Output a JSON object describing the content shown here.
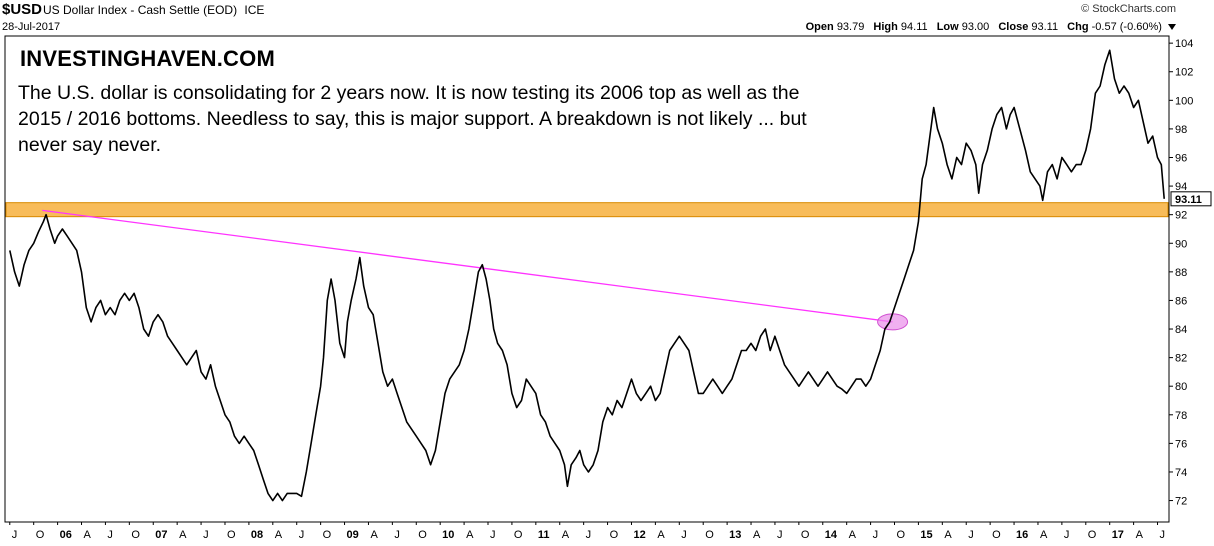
{
  "header": {
    "symbol": "$USD",
    "description": "US Dollar Index - Cash Settle (EOD)",
    "exchange": "ICE",
    "date": "28-Jul-2017",
    "copyright": "© StockCharts.com",
    "open_label": "Open",
    "open_value": "93.79",
    "high_label": "High",
    "high_value": "94.11",
    "low_label": "Low",
    "low_value": "93.00",
    "close_label": "Close",
    "close_value": "93.11",
    "chg_label": "Chg",
    "chg_value": "-0.57 (-0.60%)"
  },
  "annotation": {
    "title": "INVESTINGHAVEN.COM",
    "text": "The U.S. dollar is consolidating for 2 years now. It is now testing its 2006 top as well as the 2015 / 2016 bottoms. Needless to say, this is major support. A breakdown is not likely ... but never say never."
  },
  "colors": {
    "price": "#000000",
    "support_band": "#f5a623",
    "trendline": "#ff33ff",
    "highlight": "#e98ee9"
  },
  "chart_data": {
    "type": "line",
    "ylim": [
      70.5,
      104.5
    ],
    "y_ticks": [
      72,
      74,
      76,
      78,
      80,
      82,
      84,
      86,
      88,
      90,
      92,
      94,
      96,
      98,
      100,
      102,
      104
    ],
    "last_price_label": "93.11",
    "last_price": 93.11,
    "x_ticks": [
      {
        "label": "J",
        "t": 2005.5
      },
      {
        "label": "O",
        "t": 2005.75
      },
      {
        "label": "06",
        "t": 2006.0,
        "year": true
      },
      {
        "label": "A",
        "t": 2006.25
      },
      {
        "label": "J",
        "t": 2006.5
      },
      {
        "label": "O",
        "t": 2006.75
      },
      {
        "label": "07",
        "t": 2007.0,
        "year": true
      },
      {
        "label": "A",
        "t": 2007.25
      },
      {
        "label": "J",
        "t": 2007.5
      },
      {
        "label": "O",
        "t": 2007.75
      },
      {
        "label": "08",
        "t": 2008.0,
        "year": true
      },
      {
        "label": "A",
        "t": 2008.25
      },
      {
        "label": "J",
        "t": 2008.5
      },
      {
        "label": "O",
        "t": 2008.75
      },
      {
        "label": "09",
        "t": 2009.0,
        "year": true
      },
      {
        "label": "A",
        "t": 2009.25
      },
      {
        "label": "J",
        "t": 2009.5
      },
      {
        "label": "O",
        "t": 2009.75
      },
      {
        "label": "10",
        "t": 2010.0,
        "year": true
      },
      {
        "label": "A",
        "t": 2010.25
      },
      {
        "label": "J",
        "t": 2010.5
      },
      {
        "label": "O",
        "t": 2010.75
      },
      {
        "label": "11",
        "t": 2011.0,
        "year": true
      },
      {
        "label": "A",
        "t": 2011.25
      },
      {
        "label": "J",
        "t": 2011.5
      },
      {
        "label": "O",
        "t": 2011.75
      },
      {
        "label": "12",
        "t": 2012.0,
        "year": true
      },
      {
        "label": "A",
        "t": 2012.25
      },
      {
        "label": "J",
        "t": 2012.5
      },
      {
        "label": "O",
        "t": 2012.75
      },
      {
        "label": "13",
        "t": 2013.0,
        "year": true
      },
      {
        "label": "A",
        "t": 2013.25
      },
      {
        "label": "J",
        "t": 2013.5
      },
      {
        "label": "O",
        "t": 2013.75
      },
      {
        "label": "14",
        "t": 2014.0,
        "year": true
      },
      {
        "label": "A",
        "t": 2014.25
      },
      {
        "label": "J",
        "t": 2014.5
      },
      {
        "label": "O",
        "t": 2014.75
      },
      {
        "label": "15",
        "t": 2015.0,
        "year": true
      },
      {
        "label": "A",
        "t": 2015.25
      },
      {
        "label": "J",
        "t": 2015.5
      },
      {
        "label": "O",
        "t": 2015.75
      },
      {
        "label": "16",
        "t": 2016.0,
        "year": true
      },
      {
        "label": "A",
        "t": 2016.25
      },
      {
        "label": "J",
        "t": 2016.5
      },
      {
        "label": "O",
        "t": 2016.75
      },
      {
        "label": "17",
        "t": 2017.0,
        "year": true
      },
      {
        "label": "A",
        "t": 2017.25
      },
      {
        "label": "J",
        "t": 2017.5
      }
    ],
    "price_series": [
      [
        2005.5,
        89.5
      ],
      [
        2005.55,
        88.0
      ],
      [
        2005.6,
        87.0
      ],
      [
        2005.65,
        88.5
      ],
      [
        2005.7,
        89.5
      ],
      [
        2005.75,
        90.0
      ],
      [
        2005.8,
        90.8
      ],
      [
        2005.85,
        91.5
      ],
      [
        2005.88,
        92.0
      ],
      [
        2005.92,
        91.0
      ],
      [
        2005.97,
        90.0
      ],
      [
        2006.0,
        90.5
      ],
      [
        2006.05,
        91.0
      ],
      [
        2006.1,
        90.5
      ],
      [
        2006.15,
        90.0
      ],
      [
        2006.2,
        89.5
      ],
      [
        2006.25,
        88.0
      ],
      [
        2006.3,
        85.5
      ],
      [
        2006.35,
        84.5
      ],
      [
        2006.4,
        85.5
      ],
      [
        2006.45,
        86.0
      ],
      [
        2006.5,
        85.0
      ],
      [
        2006.55,
        85.5
      ],
      [
        2006.6,
        85.0
      ],
      [
        2006.65,
        86.0
      ],
      [
        2006.7,
        86.5
      ],
      [
        2006.75,
        86.0
      ],
      [
        2006.8,
        86.5
      ],
      [
        2006.85,
        85.5
      ],
      [
        2006.9,
        84.0
      ],
      [
        2006.95,
        83.5
      ],
      [
        2007.0,
        84.5
      ],
      [
        2007.05,
        85.0
      ],
      [
        2007.1,
        84.5
      ],
      [
        2007.15,
        83.5
      ],
      [
        2007.2,
        83.0
      ],
      [
        2007.25,
        82.5
      ],
      [
        2007.3,
        82.0
      ],
      [
        2007.35,
        81.5
      ],
      [
        2007.4,
        82.0
      ],
      [
        2007.45,
        82.5
      ],
      [
        2007.5,
        81.0
      ],
      [
        2007.55,
        80.5
      ],
      [
        2007.6,
        81.5
      ],
      [
        2007.65,
        80.0
      ],
      [
        2007.7,
        79.0
      ],
      [
        2007.75,
        78.0
      ],
      [
        2007.8,
        77.5
      ],
      [
        2007.85,
        76.5
      ],
      [
        2007.9,
        76.0
      ],
      [
        2007.95,
        76.5
      ],
      [
        2008.0,
        76.0
      ],
      [
        2008.05,
        75.5
      ],
      [
        2008.1,
        74.5
      ],
      [
        2008.15,
        73.5
      ],
      [
        2008.2,
        72.5
      ],
      [
        2008.25,
        72.0
      ],
      [
        2008.3,
        72.5
      ],
      [
        2008.35,
        72.0
      ],
      [
        2008.4,
        72.5
      ],
      [
        2008.45,
        72.5
      ],
      [
        2008.5,
        72.5
      ],
      [
        2008.55,
        72.3
      ],
      [
        2008.6,
        74.0
      ],
      [
        2008.65,
        76.0
      ],
      [
        2008.7,
        78.0
      ],
      [
        2008.75,
        80.0
      ],
      [
        2008.78,
        82.0
      ],
      [
        2008.82,
        86.0
      ],
      [
        2008.86,
        87.5
      ],
      [
        2008.9,
        86.0
      ],
      [
        2008.95,
        83.0
      ],
      [
        2009.0,
        82.0
      ],
      [
        2009.03,
        84.5
      ],
      [
        2009.07,
        86.0
      ],
      [
        2009.12,
        87.5
      ],
      [
        2009.16,
        89.0
      ],
      [
        2009.2,
        87.0
      ],
      [
        2009.25,
        85.5
      ],
      [
        2009.3,
        85.0
      ],
      [
        2009.35,
        83.0
      ],
      [
        2009.4,
        81.0
      ],
      [
        2009.45,
        80.0
      ],
      [
        2009.5,
        80.5
      ],
      [
        2009.55,
        79.5
      ],
      [
        2009.6,
        78.5
      ],
      [
        2009.65,
        77.5
      ],
      [
        2009.7,
        77.0
      ],
      [
        2009.75,
        76.5
      ],
      [
        2009.8,
        76.0
      ],
      [
        2009.85,
        75.5
      ],
      [
        2009.9,
        74.5
      ],
      [
        2009.95,
        75.5
      ],
      [
        2010.0,
        77.5
      ],
      [
        2010.05,
        79.5
      ],
      [
        2010.1,
        80.5
      ],
      [
        2010.15,
        81.0
      ],
      [
        2010.2,
        81.5
      ],
      [
        2010.25,
        82.5
      ],
      [
        2010.3,
        84.0
      ],
      [
        2010.35,
        86.0
      ],
      [
        2010.4,
        88.0
      ],
      [
        2010.44,
        88.5
      ],
      [
        2010.48,
        87.5
      ],
      [
        2010.52,
        86.0
      ],
      [
        2010.56,
        84.0
      ],
      [
        2010.6,
        83.0
      ],
      [
        2010.65,
        82.5
      ],
      [
        2010.7,
        81.5
      ],
      [
        2010.75,
        79.5
      ],
      [
        2010.8,
        78.5
      ],
      [
        2010.85,
        79.0
      ],
      [
        2010.9,
        80.5
      ],
      [
        2010.95,
        80.0
      ],
      [
        2011.0,
        79.5
      ],
      [
        2011.05,
        78.0
      ],
      [
        2011.1,
        77.5
      ],
      [
        2011.15,
        76.5
      ],
      [
        2011.2,
        76.0
      ],
      [
        2011.25,
        75.5
      ],
      [
        2011.3,
        74.5
      ],
      [
        2011.33,
        73.0
      ],
      [
        2011.37,
        74.5
      ],
      [
        2011.42,
        75.0
      ],
      [
        2011.46,
        75.5
      ],
      [
        2011.5,
        74.5
      ],
      [
        2011.55,
        74.0
      ],
      [
        2011.6,
        74.5
      ],
      [
        2011.65,
        75.5
      ],
      [
        2011.7,
        77.5
      ],
      [
        2011.75,
        78.5
      ],
      [
        2011.8,
        78.0
      ],
      [
        2011.85,
        79.0
      ],
      [
        2011.9,
        78.5
      ],
      [
        2011.95,
        79.5
      ],
      [
        2012.0,
        80.5
      ],
      [
        2012.05,
        79.5
      ],
      [
        2012.1,
        79.0
      ],
      [
        2012.15,
        79.5
      ],
      [
        2012.2,
        80.0
      ],
      [
        2012.25,
        79.0
      ],
      [
        2012.3,
        79.5
      ],
      [
        2012.35,
        81.0
      ],
      [
        2012.4,
        82.5
      ],
      [
        2012.45,
        83.0
      ],
      [
        2012.5,
        83.5
      ],
      [
        2012.55,
        83.0
      ],
      [
        2012.6,
        82.5
      ],
      [
        2012.65,
        81.0
      ],
      [
        2012.7,
        79.5
      ],
      [
        2012.75,
        79.5
      ],
      [
        2012.8,
        80.0
      ],
      [
        2012.85,
        80.5
      ],
      [
        2012.9,
        80.0
      ],
      [
        2012.95,
        79.5
      ],
      [
        2013.0,
        80.0
      ],
      [
        2013.05,
        80.5
      ],
      [
        2013.1,
        81.5
      ],
      [
        2013.15,
        82.5
      ],
      [
        2013.2,
        82.5
      ],
      [
        2013.25,
        83.0
      ],
      [
        2013.3,
        82.5
      ],
      [
        2013.35,
        83.5
      ],
      [
        2013.4,
        84.0
      ],
      [
        2013.45,
        82.5
      ],
      [
        2013.5,
        83.5
      ],
      [
        2013.55,
        82.5
      ],
      [
        2013.6,
        81.5
      ],
      [
        2013.65,
        81.0
      ],
      [
        2013.7,
        80.5
      ],
      [
        2013.75,
        80.0
      ],
      [
        2013.8,
        80.5
      ],
      [
        2013.85,
        81.0
      ],
      [
        2013.9,
        80.5
      ],
      [
        2013.95,
        80.0
      ],
      [
        2014.0,
        80.5
      ],
      [
        2014.05,
        81.0
      ],
      [
        2014.1,
        80.5
      ],
      [
        2014.15,
        80.0
      ],
      [
        2014.2,
        79.8
      ],
      [
        2014.25,
        79.5
      ],
      [
        2014.3,
        80.0
      ],
      [
        2014.35,
        80.5
      ],
      [
        2014.4,
        80.5
      ],
      [
        2014.45,
        80.0
      ],
      [
        2014.5,
        80.5
      ],
      [
        2014.55,
        81.5
      ],
      [
        2014.6,
        82.5
      ],
      [
        2014.65,
        84.0
      ],
      [
        2014.7,
        84.5
      ],
      [
        2014.75,
        85.5
      ],
      [
        2014.8,
        86.5
      ],
      [
        2014.85,
        87.5
      ],
      [
        2014.9,
        88.5
      ],
      [
        2014.95,
        89.5
      ],
      [
        2015.0,
        91.5
      ],
      [
        2015.04,
        94.5
      ],
      [
        2015.08,
        95.5
      ],
      [
        2015.12,
        97.5
      ],
      [
        2015.16,
        99.5
      ],
      [
        2015.2,
        98.0
      ],
      [
        2015.25,
        97.0
      ],
      [
        2015.3,
        95.5
      ],
      [
        2015.35,
        94.5
      ],
      [
        2015.4,
        96.0
      ],
      [
        2015.45,
        95.5
      ],
      [
        2015.5,
        97.0
      ],
      [
        2015.55,
        96.5
      ],
      [
        2015.6,
        95.5
      ],
      [
        2015.63,
        93.5
      ],
      [
        2015.67,
        95.5
      ],
      [
        2015.72,
        96.5
      ],
      [
        2015.77,
        98.0
      ],
      [
        2015.82,
        99.0
      ],
      [
        2015.87,
        99.5
      ],
      [
        2015.92,
        98.0
      ],
      [
        2015.96,
        99.0
      ],
      [
        2016.0,
        99.5
      ],
      [
        2016.04,
        98.5
      ],
      [
        2016.08,
        97.5
      ],
      [
        2016.12,
        96.5
      ],
      [
        2016.17,
        95.0
      ],
      [
        2016.22,
        94.5
      ],
      [
        2016.27,
        94.0
      ],
      [
        2016.3,
        93.0
      ],
      [
        2016.35,
        95.0
      ],
      [
        2016.4,
        95.5
      ],
      [
        2016.45,
        94.5
      ],
      [
        2016.5,
        96.0
      ],
      [
        2016.55,
        95.5
      ],
      [
        2016.6,
        95.0
      ],
      [
        2016.65,
        95.5
      ],
      [
        2016.7,
        95.5
      ],
      [
        2016.75,
        96.5
      ],
      [
        2016.8,
        98.0
      ],
      [
        2016.85,
        100.5
      ],
      [
        2016.9,
        101.0
      ],
      [
        2016.95,
        102.5
      ],
      [
        2017.0,
        103.5
      ],
      [
        2017.05,
        101.5
      ],
      [
        2017.1,
        100.5
      ],
      [
        2017.15,
        101.0
      ],
      [
        2017.2,
        100.5
      ],
      [
        2017.25,
        99.5
      ],
      [
        2017.3,
        100.0
      ],
      [
        2017.35,
        98.5
      ],
      [
        2017.4,
        97.0
      ],
      [
        2017.45,
        97.5
      ],
      [
        2017.5,
        96.0
      ],
      [
        2017.54,
        95.5
      ],
      [
        2017.57,
        93.11
      ]
    ],
    "support_zone": [
      92.0,
      92.7
    ],
    "trendline": [
      [
        2005.84,
        92.3
      ],
      [
        2014.73,
        84.5
      ]
    ],
    "highlight_point": [
      2014.73,
      84.5
    ]
  }
}
